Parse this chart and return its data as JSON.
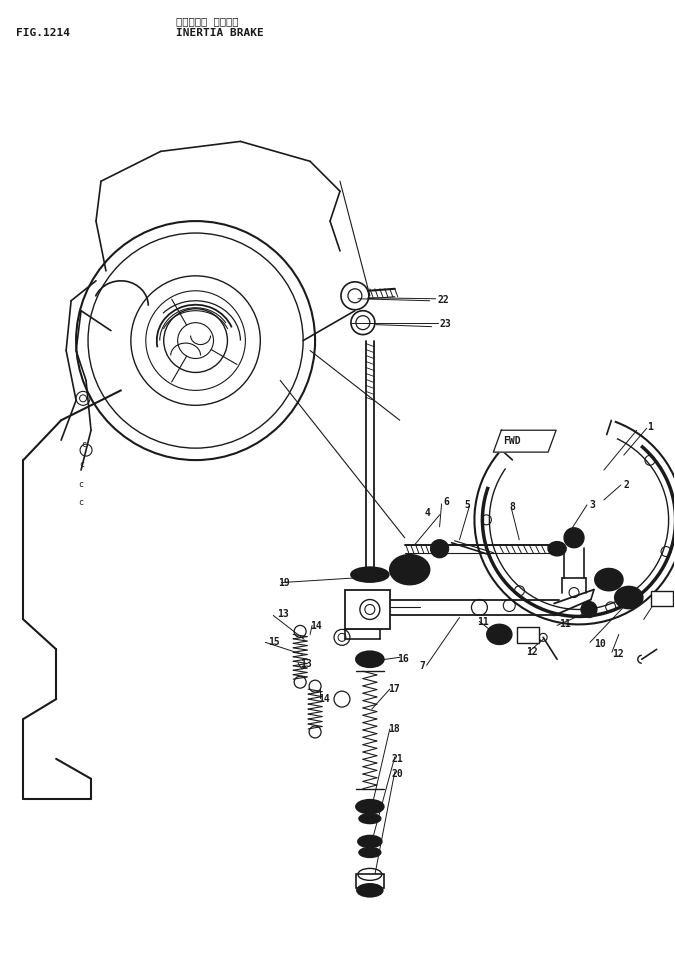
{
  "title_japanese": "イナーシャ ブレーキ",
  "title_english": "INERTIA BRAKE",
  "fig_label": "FIG.1214",
  "background_color": "#ffffff",
  "line_color": "#1a1a1a",
  "fig_width": 6.75,
  "fig_height": 9.64,
  "dpi": 100
}
